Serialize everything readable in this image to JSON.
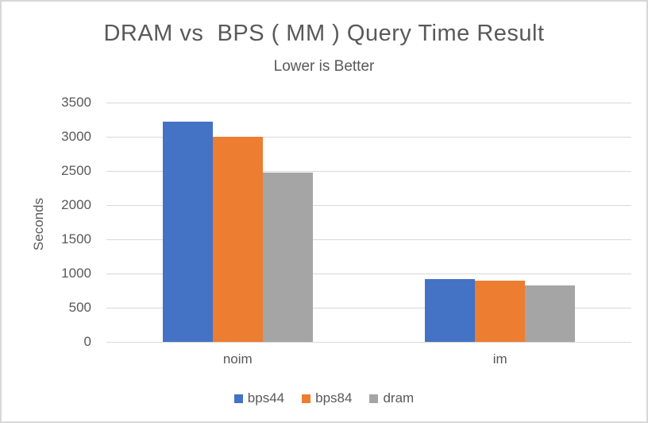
{
  "window": {
    "background": "#FFFFFF",
    "border_color": "#D8D8D8"
  },
  "chart_data": {
    "type": "bar",
    "title": "DRAM vs  BPS ( MM ) Query Time Result",
    "subtitle": "Lower is Better",
    "ylabel": "Seconds",
    "xlabel": "",
    "categories": [
      "noim",
      "im"
    ],
    "series": [
      {
        "name": "bps44",
        "color": "#4472C4",
        "values": [
          3220,
          915
        ]
      },
      {
        "name": "bps84",
        "color": "#ED7D31",
        "values": [
          3000,
          900
        ]
      },
      {
        "name": "dram",
        "color": "#A5A5A5",
        "values": [
          2480,
          830
        ]
      }
    ],
    "ylim": [
      0,
      3500
    ],
    "yticks": [
      0,
      500,
      1000,
      1500,
      2000,
      2500,
      3000,
      3500
    ],
    "grid": true,
    "legend_position": "bottom",
    "text_color": "#595959",
    "gridline_color": "#D9D9D9"
  }
}
